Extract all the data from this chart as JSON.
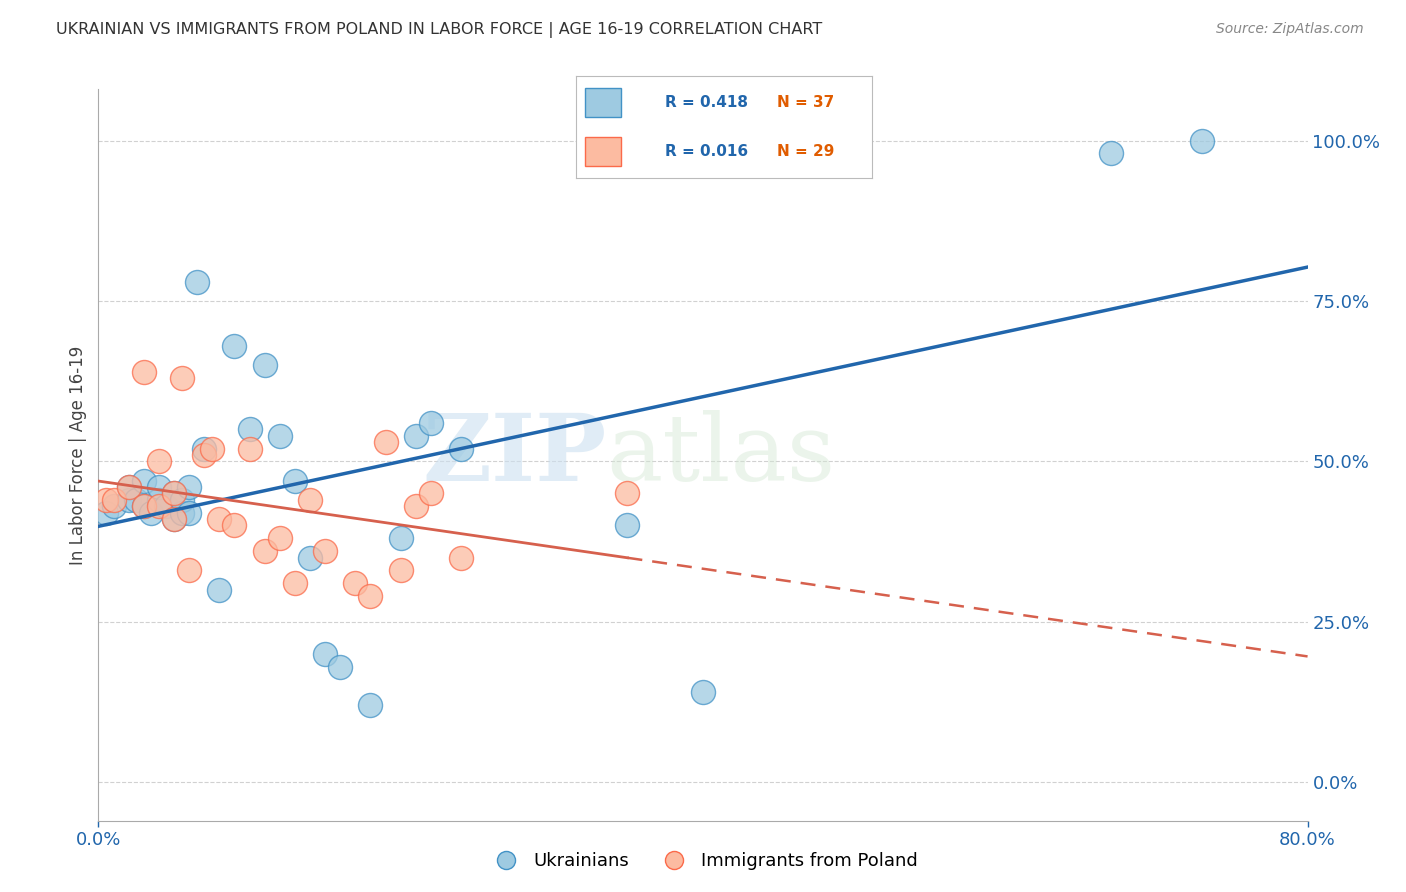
{
  "title": "UKRAINIAN VS IMMIGRANTS FROM POLAND IN LABOR FORCE | AGE 16-19 CORRELATION CHART",
  "source": "Source: ZipAtlas.com",
  "ylabel_left": "In Labor Force | Age 16-19",
  "xlim": [
    0.0,
    0.8
  ],
  "ylim": [
    -0.06,
    1.08
  ],
  "yticks_right": [
    0.0,
    0.25,
    0.5,
    0.75,
    1.0
  ],
  "ytick_labels_right": [
    "0.0%",
    "25.0%",
    "50.0%",
    "75.0%",
    "100.0%"
  ],
  "xtick_labels": [
    "0.0%",
    "80.0%"
  ],
  "xticks": [
    0.0,
    0.8
  ],
  "legend_r1": "R = 0.418",
  "legend_n1": "N = 37",
  "legend_r2": "R = 0.016",
  "legend_n2": "N = 29",
  "legend_label1": "Ukrainians",
  "legend_label2": "Immigrants from Poland",
  "watermark_zip": "ZIP",
  "watermark_atlas": "atlas",
  "blue_color": "#9ecae1",
  "blue_edge": "#4292c6",
  "pink_color": "#fcbba1",
  "pink_edge": "#fb6a4a",
  "trend_blue": "#2166ac",
  "trend_pink": "#d6604d",
  "grid_color": "#cccccc",
  "axis_label_color": "#2166ac",
  "title_color": "#333333",
  "legend_r_color": "#2166ac",
  "legend_n_color": "#e05c00",
  "blue_x": [
    0.005,
    0.01,
    0.02,
    0.02,
    0.025,
    0.03,
    0.03,
    0.035,
    0.04,
    0.04,
    0.045,
    0.05,
    0.05,
    0.055,
    0.055,
    0.06,
    0.06,
    0.065,
    0.07,
    0.08,
    0.09,
    0.1,
    0.11,
    0.12,
    0.13,
    0.14,
    0.15,
    0.16,
    0.18,
    0.2,
    0.21,
    0.22,
    0.24,
    0.35,
    0.4,
    0.67,
    0.73
  ],
  "blue_y": [
    0.42,
    0.43,
    0.44,
    0.46,
    0.44,
    0.43,
    0.47,
    0.42,
    0.44,
    0.46,
    0.43,
    0.41,
    0.45,
    0.42,
    0.44,
    0.42,
    0.46,
    0.78,
    0.52,
    0.3,
    0.68,
    0.55,
    0.65,
    0.54,
    0.47,
    0.35,
    0.2,
    0.18,
    0.12,
    0.38,
    0.54,
    0.56,
    0.52,
    0.4,
    0.14,
    0.98,
    1.0
  ],
  "pink_x": [
    0.005,
    0.01,
    0.02,
    0.03,
    0.03,
    0.04,
    0.04,
    0.05,
    0.05,
    0.055,
    0.06,
    0.07,
    0.075,
    0.08,
    0.09,
    0.1,
    0.11,
    0.12,
    0.13,
    0.14,
    0.15,
    0.17,
    0.18,
    0.19,
    0.2,
    0.21,
    0.22,
    0.24,
    0.35
  ],
  "pink_y": [
    0.44,
    0.44,
    0.46,
    0.43,
    0.64,
    0.43,
    0.5,
    0.41,
    0.45,
    0.63,
    0.33,
    0.51,
    0.52,
    0.41,
    0.4,
    0.52,
    0.36,
    0.38,
    0.31,
    0.44,
    0.36,
    0.31,
    0.29,
    0.53,
    0.33,
    0.43,
    0.45,
    0.35,
    0.45
  ]
}
